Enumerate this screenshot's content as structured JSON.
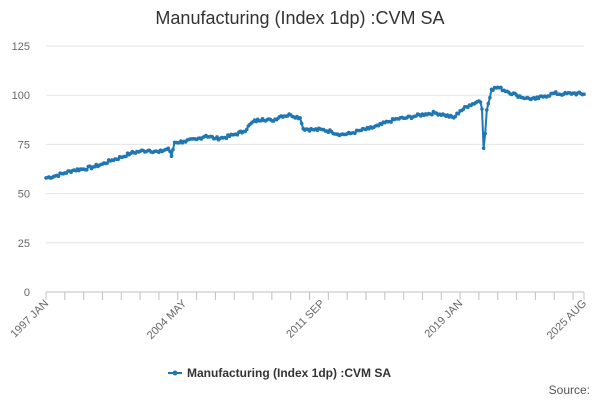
{
  "chart_data": {
    "type": "line",
    "title": "Manufacturing (Index 1dp) :CVM SA",
    "xlabel": "",
    "ylabel": "",
    "ylim": [
      0,
      125
    ],
    "yticks": [
      0,
      25,
      50,
      75,
      100,
      125
    ],
    "x_tick_labels": [
      "1997 JAN",
      "2004 MAY",
      "2011 SEP",
      "2019 JAN",
      "2025 AUG"
    ],
    "grid": true,
    "legend_position": "bottom",
    "series": [
      {
        "name": "Manufacturing (Index 1dp) :CVM SA",
        "color": "#1f77b4",
        "points": [
          [
            "1997 JAN",
            58.0
          ],
          [
            "1997 JUL",
            59.0
          ],
          [
            "1998 JAN",
            60.5
          ],
          [
            "1998 JUL",
            62.0
          ],
          [
            "1999 JAN",
            62.5
          ],
          [
            "1999 JUL",
            63.5
          ],
          [
            "2000 JAN",
            65.0
          ],
          [
            "2000 JUL",
            67.0
          ],
          [
            "2001 JAN",
            68.5
          ],
          [
            "2001 JUL",
            70.5
          ],
          [
            "2002 JAN",
            71.5
          ],
          [
            "2002 JUL",
            72.0
          ],
          [
            "2003 JAN",
            71.0
          ],
          [
            "2003 JUL",
            73.0
          ],
          [
            "2003 SEP",
            69.0
          ],
          [
            "2003 NOV",
            76.0
          ],
          [
            "2004 MAY",
            76.5
          ],
          [
            "2005 JAN",
            77.5
          ],
          [
            "2005 JUL",
            79.5
          ],
          [
            "2006 JAN",
            78.0
          ],
          [
            "2006 JUL",
            78.5
          ],
          [
            "2007 JAN",
            80.0
          ],
          [
            "2007 JUL",
            81.5
          ],
          [
            "2008 JAN",
            86.5
          ],
          [
            "2008 JUL",
            88.0
          ],
          [
            "2009 JAN",
            87.0
          ],
          [
            "2009 JUL",
            89.5
          ],
          [
            "2010 JAN",
            90.0
          ],
          [
            "2010 JUL",
            88.5
          ],
          [
            "2010 SEP",
            83.0
          ],
          [
            "2011 MAR",
            82.5
          ],
          [
            "2011 SEP",
            82.5
          ],
          [
            "2012 MAR",
            81.5
          ],
          [
            "2012 SEP",
            80.0
          ],
          [
            "2013 MAR",
            80.5
          ],
          [
            "2013 SEP",
            82.0
          ],
          [
            "2014 MAR",
            83.0
          ],
          [
            "2014 SEP",
            84.5
          ],
          [
            "2015 MAR",
            86.5
          ],
          [
            "2015 SEP",
            88.0
          ],
          [
            "2016 MAR",
            88.5
          ],
          [
            "2016 SEP",
            89.5
          ],
          [
            "2017 MAR",
            90.5
          ],
          [
            "2017 SEP",
            91.0
          ],
          [
            "2018 MAR",
            90.0
          ],
          [
            "2018 SEP",
            88.5
          ],
          [
            "2019 JAN",
            92.0
          ],
          [
            "2019 JUL",
            95.0
          ],
          [
            "2020 JAN",
            97.0
          ],
          [
            "2020 FEB",
            96.5
          ],
          [
            "2020 MAR",
            93.0
          ],
          [
            "2020 APR",
            73.0
          ],
          [
            "2020 MAY",
            80.5
          ],
          [
            "2020 JUN",
            92.5
          ],
          [
            "2020 SEP",
            103.0
          ],
          [
            "2021 JAN",
            104.0
          ],
          [
            "2021 JUL",
            102.0
          ],
          [
            "2022 JAN",
            100.0
          ],
          [
            "2022 JUL",
            98.5
          ],
          [
            "2023 JAN",
            98.0
          ],
          [
            "2023 JUL",
            99.5
          ],
          [
            "2024 JAN",
            101.0
          ],
          [
            "2024 JUL",
            100.5
          ],
          [
            "2025 JAN",
            101.0
          ],
          [
            "2025 AUG",
            100.5
          ]
        ]
      }
    ]
  },
  "source_label": "Source:"
}
